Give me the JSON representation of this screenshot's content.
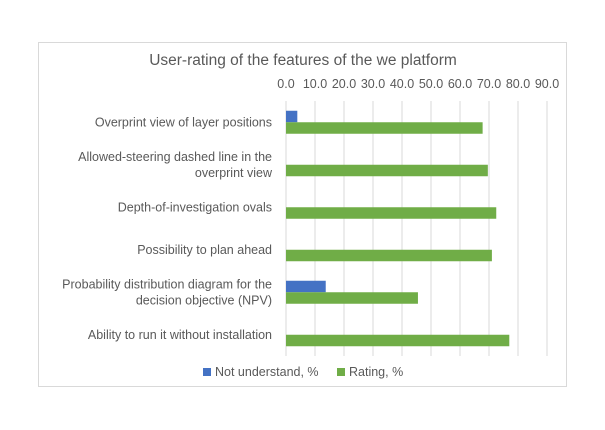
{
  "chart_data": {
    "type": "bar",
    "orientation": "horizontal",
    "title": "User-rating of the features of the we platform",
    "categories": [
      [
        "Overprint view of layer positions"
      ],
      [
        "Allowed-steering dashed line in the",
        "overprint view"
      ],
      [
        "Depth-of-investigation ovals"
      ],
      [
        "Possibility to plan ahead"
      ],
      [
        "Probability distribution diagram for the",
        "decision objective (NPV)"
      ],
      [
        "Ability to run it without installation"
      ]
    ],
    "series": [
      {
        "name": "Not understand, %",
        "color": "#4472c4",
        "values": [
          3.9,
          0,
          0,
          0,
          13.7,
          0
        ]
      },
      {
        "name": "Rating, %",
        "color": "#70ad47",
        "values": [
          67.8,
          69.6,
          72.5,
          71.0,
          45.5,
          77.0
        ]
      }
    ],
    "xlim": [
      0,
      90
    ],
    "xticks": [
      0,
      10,
      20,
      30,
      40,
      50,
      60,
      70,
      80,
      90
    ],
    "xtick_labels": [
      "0.0",
      "10.0",
      "20.0",
      "30.0",
      "40.0",
      "50.0",
      "60.0",
      "70.0",
      "80.0",
      "90.0"
    ],
    "x_axis_position": "top",
    "grid": true,
    "legend_position": "bottom"
  }
}
